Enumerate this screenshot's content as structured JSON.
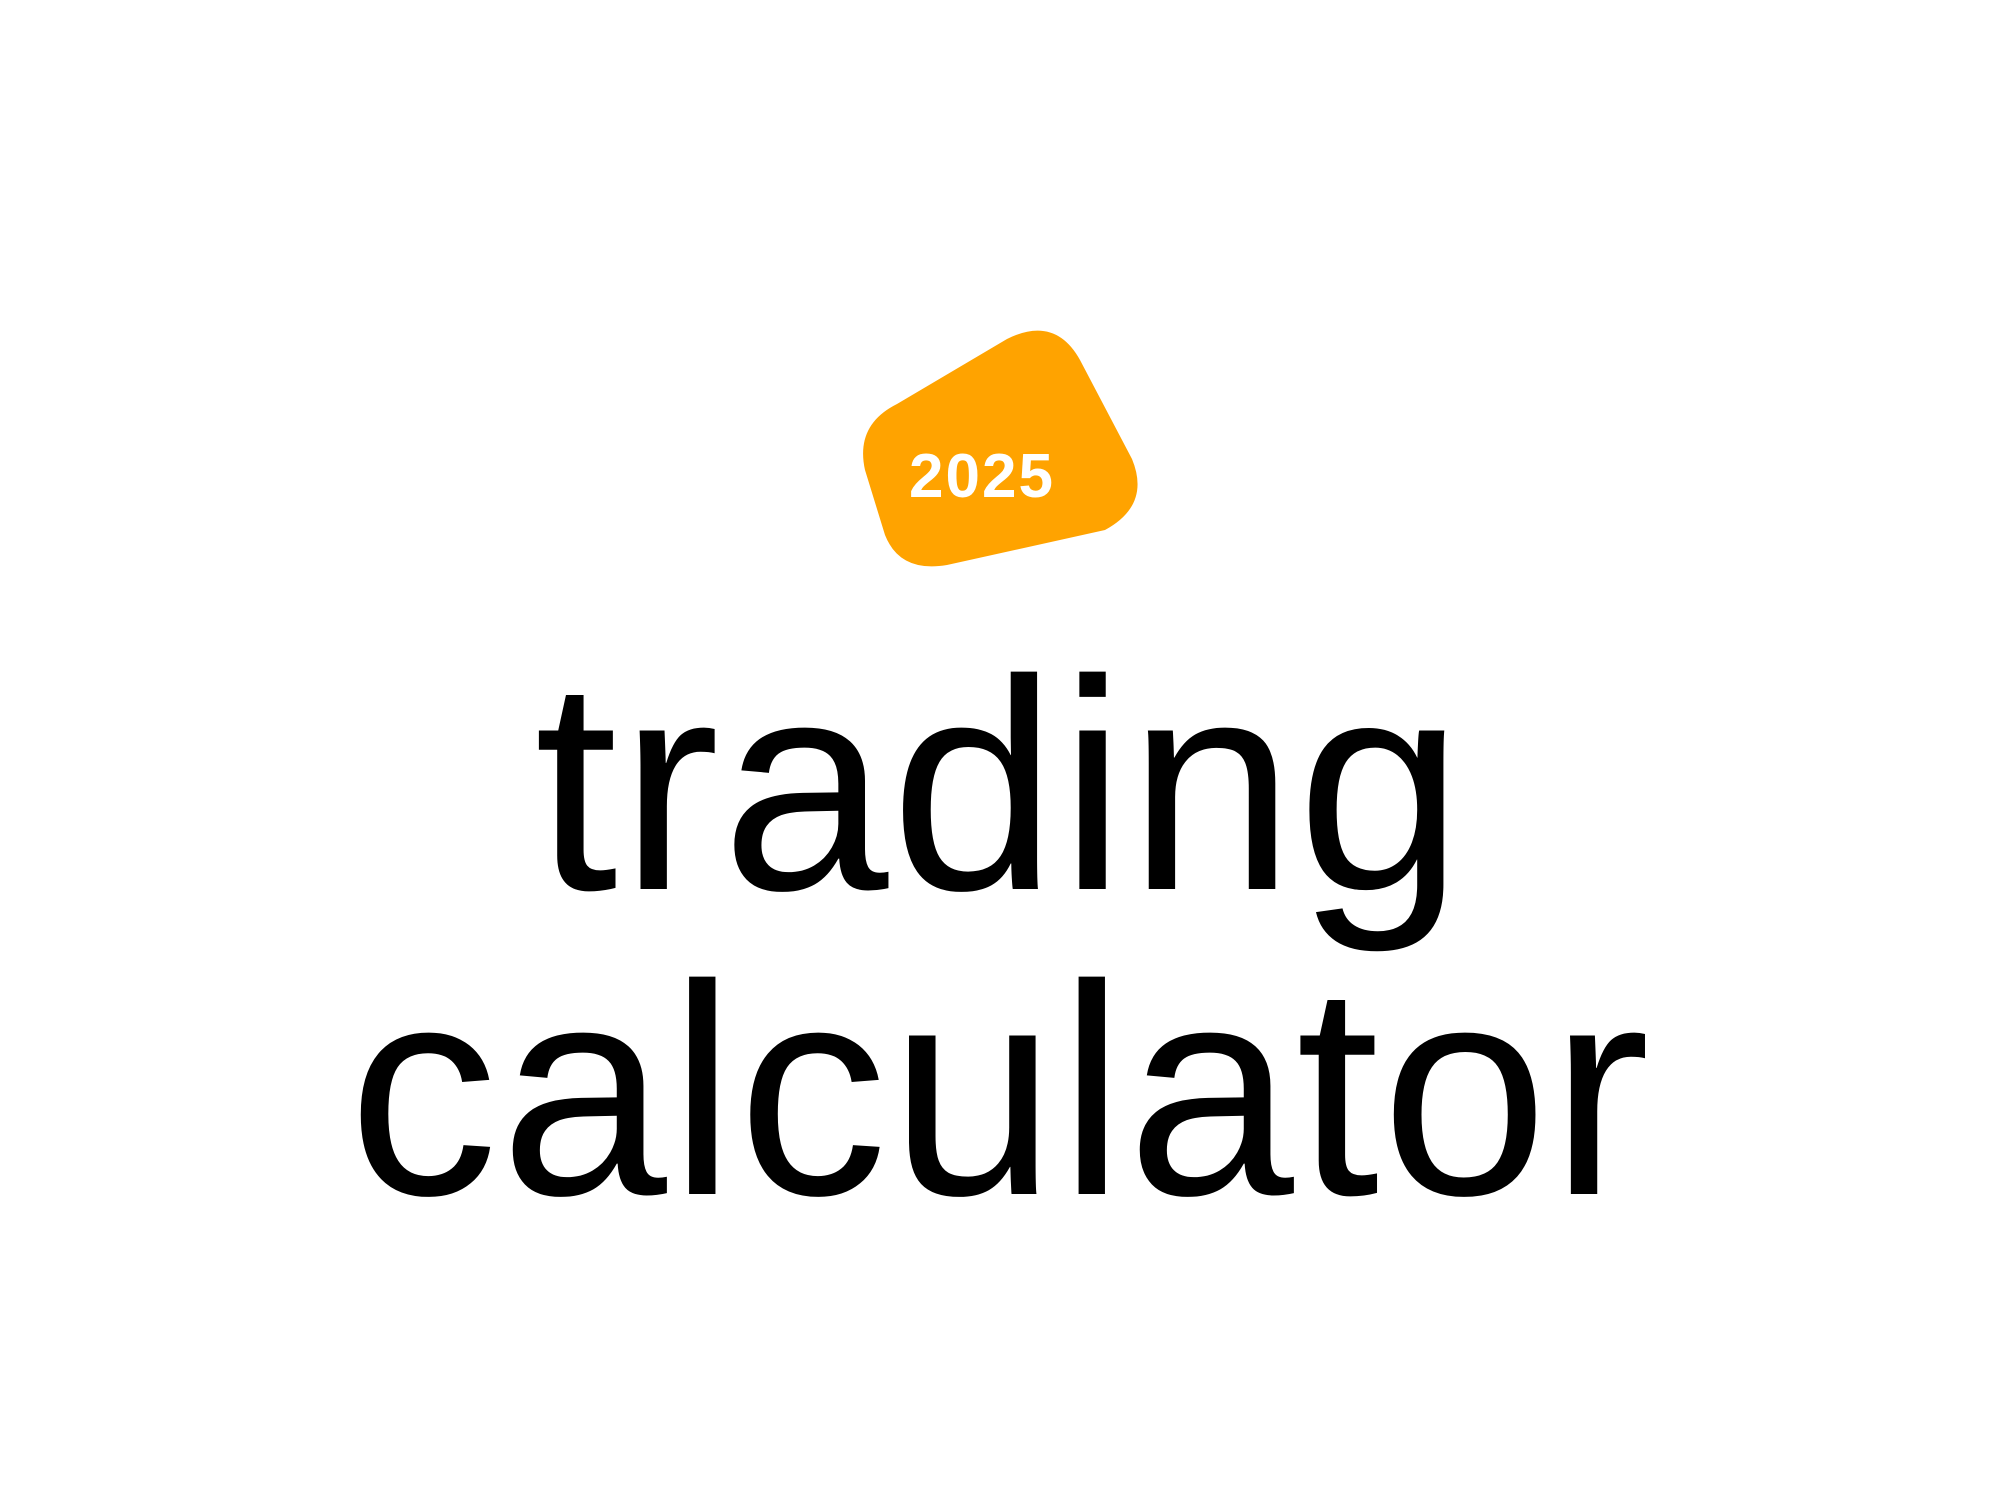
{
  "badge": {
    "year": "2025",
    "color": "#FFA300",
    "text_color": "#FFFFFF"
  },
  "headline": {
    "line1": "trading",
    "line2": "calculator",
    "color": "#000000"
  }
}
